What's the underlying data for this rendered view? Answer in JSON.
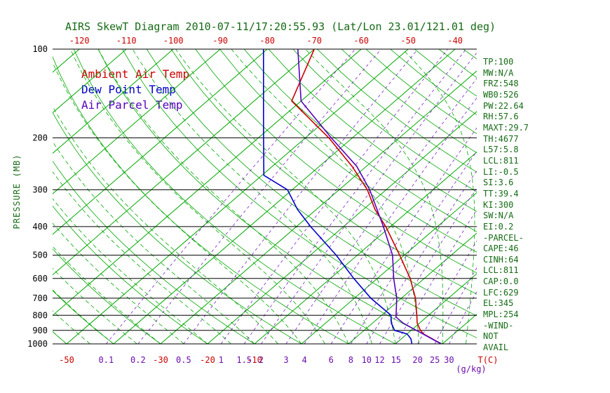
{
  "title": "AIRS SkewT Diagram 2010-07-11/17:20:55.93 (Lat/Lon 23.01/121.01 deg)",
  "legend": [
    {
      "label": "Ambient Air Temp",
      "color": "#cc0000"
    },
    {
      "label": "Dew Point Temp",
      "color": "#0000cc"
    },
    {
      "label": "Air Parcel Temp",
      "color": "#5500bb"
    }
  ],
  "y_axis": {
    "label": "PRESSURE (MB)",
    "ticks": [
      100,
      200,
      300,
      400,
      500,
      600,
      700,
      800,
      900,
      1000
    ]
  },
  "top_axis": {
    "ticks": [
      -120,
      -110,
      -100,
      -90,
      -80,
      -70,
      -60,
      -50,
      -40
    ]
  },
  "bottom_axis": {
    "temp_ticks": [
      -50,
      -30,
      -20,
      -10
    ],
    "temp_unit": "T(C)",
    "mixing_ticks": [
      0.1,
      0.2,
      0.5,
      1,
      1.5,
      2,
      3,
      4,
      6,
      8,
      10,
      12,
      15,
      20,
      25,
      30
    ],
    "mixing_unit": "(g/kg)"
  },
  "stats": [
    "TP:100",
    "MW:N/A",
    "FRZ:548",
    "WB0:526",
    "PW:22.64",
    "RH:57.6",
    "MAXT:29.7",
    "TH:4677",
    "L57:5.8",
    "LCL:811",
    "LI:-0.5",
    "SI:3.6",
    "TT:39.4",
    "KI:300",
    "SW:N/A",
    "EI:0.2",
    "-PARCEL-",
    "CAPE:46",
    "CINH:64",
    "LCL:811",
    "CAP:0.0",
    "LFC:629",
    "EL:345",
    "MPL:254",
    "-WIND-",
    "NOT",
    "AVAIL"
  ],
  "colors": {
    "green": "#00a800",
    "purple_line": "#7a1fc4",
    "red": "#cc0000",
    "blue": "#0000cc",
    "parcel": "#5500bb",
    "dark_green_text": "#166b16",
    "black": "#000000"
  },
  "chart_data": {
    "type": "line",
    "subtype": "skewt-logp",
    "title": "AIRS SkewT Diagram 2010-07-11/17:20:55.93 (Lat/Lon 23.01/121.01 deg)",
    "ylabel": "PRESSURE (MB)",
    "xlabel": "T(C)",
    "pressure_range": [
      100,
      1000
    ],
    "pressure_log_scale": true,
    "top_temp_ticks_c": [
      -120,
      -110,
      -100,
      -90,
      -80,
      -70,
      -60,
      -50,
      -40
    ],
    "legend_position": "top-left-inside",
    "grid": true,
    "series": [
      {
        "id": "ambient-temp",
        "name": "Ambient Air Temp",
        "color": "#cc0000",
        "points": [
          [
            1000,
            29.7
          ],
          [
            960,
            26.5
          ],
          [
            925,
            23.5
          ],
          [
            900,
            22
          ],
          [
            850,
            19.5
          ],
          [
            800,
            17.5
          ],
          [
            700,
            13
          ],
          [
            600,
            7
          ],
          [
            500,
            -1
          ],
          [
            400,
            -11
          ],
          [
            350,
            -17.5
          ],
          [
            300,
            -24
          ],
          [
            250,
            -33
          ],
          [
            200,
            -45
          ],
          [
            150,
            -62
          ],
          [
            100,
            -70
          ]
        ]
      },
      {
        "id": "dew-point-temp",
        "name": "Dew Point Temp",
        "color": "#0000cc",
        "points": [
          [
            1000,
            23.5
          ],
          [
            960,
            22
          ],
          [
            925,
            20
          ],
          [
            900,
            16.5
          ],
          [
            850,
            14
          ],
          [
            800,
            12
          ],
          [
            700,
            3.5
          ],
          [
            600,
            -5
          ],
          [
            500,
            -14.5
          ],
          [
            400,
            -27
          ],
          [
            350,
            -34
          ],
          [
            300,
            -41
          ],
          [
            268,
            -49.6
          ],
          [
            200,
            -58.9
          ],
          [
            150,
            -68
          ],
          [
            100,
            -80.8
          ]
        ]
      },
      {
        "id": "air-parcel-temp",
        "name": "Air Parcel Temp",
        "color": "#5500bb",
        "points": [
          [
            1000,
            29.7
          ],
          [
            850,
            16.5
          ],
          [
            811,
            13.5
          ],
          [
            700,
            9
          ],
          [
            600,
            3.5
          ],
          [
            500,
            -2.5
          ],
          [
            400,
            -11.5
          ],
          [
            300,
            -23.5
          ],
          [
            250,
            -32
          ],
          [
            200,
            -44.5
          ],
          [
            150,
            -60
          ],
          [
            100,
            -73.5
          ]
        ]
      }
    ],
    "background": {
      "isotherms_c": {
        "from": -120,
        "to": 40,
        "step": 10
      },
      "dry_adiabats_c": {
        "from": -50,
        "to": 180,
        "step": 10
      },
      "moist_adiabats_c": {
        "from": -50,
        "to": 40,
        "step": 5
      },
      "mixing_ratio_g_kg": [
        0.1,
        0.2,
        0.5,
        1,
        1.5,
        2,
        3,
        4,
        6,
        8,
        10,
        12,
        15,
        20,
        25,
        30
      ]
    }
  }
}
